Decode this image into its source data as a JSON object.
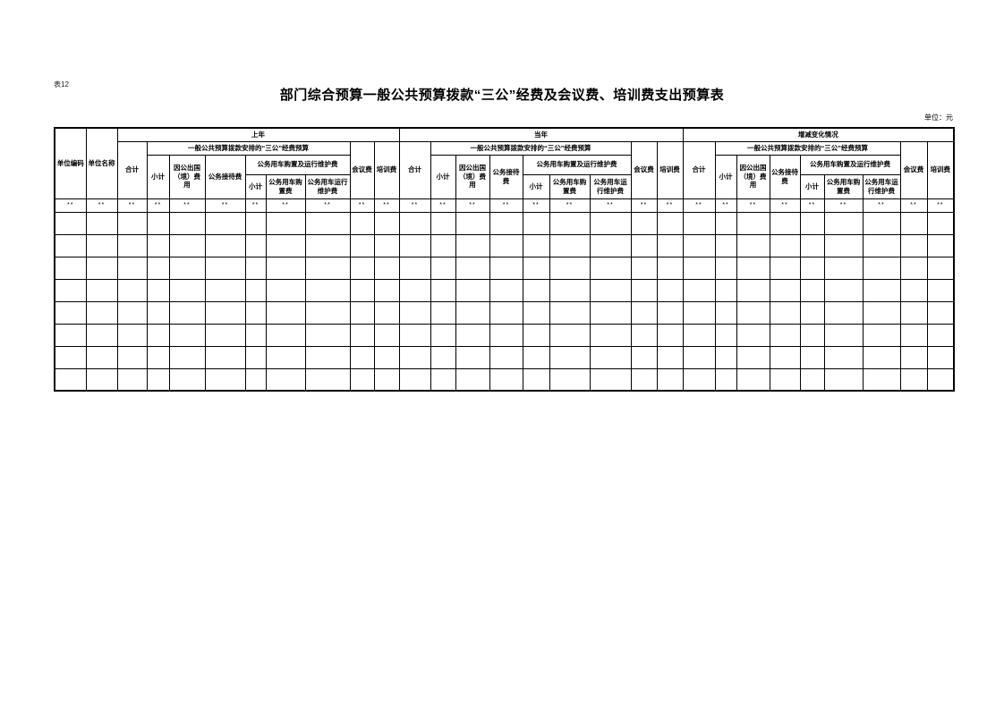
{
  "page": {
    "tag": "表12",
    "title": "部门综合预算一般公共预算拨款“三公”经费及会议费、培训费支出预算表",
    "unit_note": "单位：元"
  },
  "table": {
    "fixed_headers": [
      "单位编码",
      "单位名称"
    ],
    "sections": [
      {
        "label": "上年"
      },
      {
        "label": "当年"
      },
      {
        "label": "增减变化情况"
      }
    ],
    "columns": {
      "total": "合计",
      "sangong_group": "一般公共预算拨款安排的“三公”经费预算",
      "subtotal": "小计",
      "abroad": "因公出国（境）费用",
      "reception": "公务接待费",
      "vehicle_group": "公务用车购置及运行维护费",
      "vehicle_subtotal": "小计",
      "vehicle_purchase": "公务用车购置费",
      "vehicle_maintenance": "公务用车运行维护费",
      "meeting": "会议费",
      "training": "培训费"
    },
    "body": {
      "placeholder": "**",
      "placeholder_columns": 29,
      "empty_rows": 8
    }
  }
}
